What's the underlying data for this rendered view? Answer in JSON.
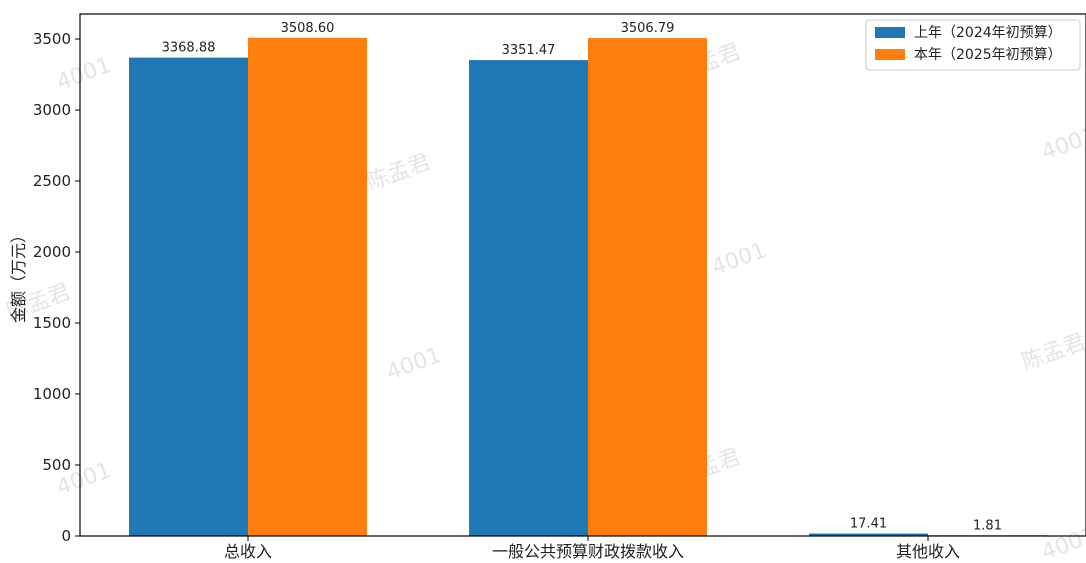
{
  "chart_data": {
    "type": "bar",
    "categories": [
      "总收入",
      "一般公共预算财政拨款收入",
      "其他收入"
    ],
    "series": [
      {
        "name": "上年（2024年初预算）",
        "color": "#1f77b4",
        "values": [
          3368.88,
          3351.47,
          17.41
        ],
        "labels": [
          "3368.88",
          "3351.47",
          "17.41"
        ]
      },
      {
        "name": "本年（2025年初预算）",
        "color": "#ff7f0e",
        "values": [
          3508.6,
          3506.79,
          1.81
        ],
        "labels": [
          "3508.60",
          "3506.79",
          "1.81"
        ]
      }
    ],
    "title": "",
    "xlabel": "",
    "ylabel": "金额（万元）",
    "ylim": [
      0,
      3500
    ],
    "yticks": [
      0,
      500,
      1000,
      1500,
      2000,
      2500,
      3000,
      3500
    ],
    "grid": false,
    "legend_position": "top-right"
  },
  "watermarks": [
    "4001",
    "陈孟君"
  ]
}
